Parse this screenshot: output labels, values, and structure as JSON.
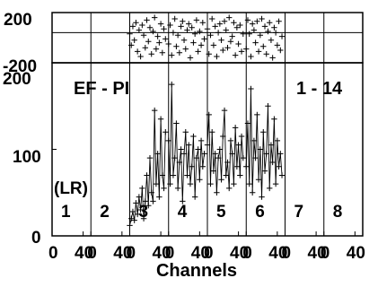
{
  "chart_data": {
    "type": "line",
    "marker": "plus",
    "color": "#000000",
    "xlabel": "Channels",
    "panels": {
      "top": {
        "yticks": [
          200,
          -200
        ],
        "tick_labels": [
          "200",
          "-200"
        ],
        "ylim": [
          -200,
          200
        ],
        "reference_line": 40
      },
      "main": {
        "yticks": [
          0,
          100,
          200
        ],
        "tick_labels": [
          "0",
          "100",
          "200"
        ],
        "ylim": [
          0,
          200
        ]
      }
    },
    "annotations": {
      "top_left": "EF - PI",
      "top_right": "1 - 14",
      "left_mid": "(LR)"
    },
    "segment_labels": [
      "1",
      "2",
      "3",
      "4",
      "5",
      "6",
      "7",
      "8"
    ],
    "segment_tick_labels": [
      "0",
      "40",
      "0",
      "40",
      "0",
      "40",
      "0",
      "40",
      "0",
      "40",
      "0",
      "40",
      "0",
      "40",
      "0",
      "40"
    ],
    "segment_xlim": [
      0,
      50
    ],
    "segments": [
      {
        "label": "1",
        "x": [],
        "y": []
      },
      {
        "label": "2",
        "x": [],
        "y": []
      },
      {
        "label": "3",
        "x": [
          0,
          2,
          4,
          6,
          8,
          10,
          12,
          14,
          16,
          18,
          20,
          22,
          24,
          26,
          28,
          30,
          32,
          34,
          36,
          38,
          40,
          42,
          44,
          46
        ],
        "y": [
          12,
          20,
          28,
          18,
          38,
          25,
          45,
          30,
          55,
          20,
          40,
          70,
          35,
          90,
          50,
          40,
          145,
          60,
          95,
          45,
          135,
          70,
          55,
          120
        ],
        "residual": [
          30,
          -60,
          90,
          -20,
          120,
          -110,
          60,
          -150,
          100,
          20,
          -80,
          140,
          -30,
          80,
          -130,
          50,
          160,
          -90,
          10,
          -40,
          110,
          -120,
          70,
          -10
        ]
      },
      {
        "label": "4",
        "x": [
          0,
          2,
          4,
          6,
          8,
          10,
          12,
          14,
          16,
          18,
          20,
          22,
          24,
          26,
          28,
          30,
          32,
          34,
          36,
          38,
          40,
          42,
          44,
          46
        ],
        "y": [
          110,
          60,
          175,
          70,
          90,
          130,
          55,
          85,
          100,
          40,
          95,
          120,
          70,
          105,
          60,
          80,
          115,
          45,
          90,
          100,
          65,
          110,
          80,
          95
        ],
        "residual": [
          -50,
          100,
          -140,
          40,
          150,
          -70,
          20,
          -120,
          90,
          130,
          -20,
          -90,
          60,
          110,
          -160,
          80,
          -40,
          30,
          140,
          -110,
          50,
          -60,
          120,
          -10
        ]
      },
      {
        "label": "5",
        "x": [
          0,
          2,
          4,
          6,
          8,
          10,
          12,
          14,
          16,
          18,
          20,
          22,
          24,
          26,
          28,
          30,
          32,
          34,
          36,
          38,
          40,
          42,
          44,
          46
        ],
        "y": [
          105,
          140,
          60,
          120,
          75,
          95,
          50,
          90,
          100,
          65,
          115,
          145,
          70,
          85,
          55,
          110,
          95,
          60,
          125,
          80,
          105,
          70,
          115,
          90
        ],
        "residual": [
          70,
          -130,
          20,
          150,
          -60,
          90,
          -150,
          40,
          110,
          -20,
          -100,
          130,
          60,
          -80,
          160,
          -30,
          10,
          120,
          -140,
          80,
          -50,
          100,
          -110,
          30
        ]
      },
      {
        "label": "6",
        "x": [
          0,
          2,
          4,
          6,
          8,
          10,
          12,
          14,
          16,
          18,
          20,
          22,
          24,
          26,
          28,
          30,
          32,
          34,
          36,
          38,
          40,
          42,
          44,
          46
        ],
        "y": [
          80,
          130,
          60,
          170,
          50,
          110,
          90,
          140,
          65,
          100,
          45,
          120,
          75,
          95,
          150,
          55,
          105,
          85,
          135,
          60,
          110,
          80,
          95,
          70
        ],
        "residual": [
          -90,
          140,
          30,
          -150,
          110,
          60,
          -40,
          130,
          -110,
          20,
          150,
          -70,
          90,
          -130,
          50,
          120,
          -20,
          -160,
          80,
          40,
          -60,
          130,
          -100,
          10
        ]
      },
      {
        "label": "7",
        "x": [],
        "y": []
      },
      {
        "label": "8",
        "x": [],
        "y": []
      }
    ]
  }
}
